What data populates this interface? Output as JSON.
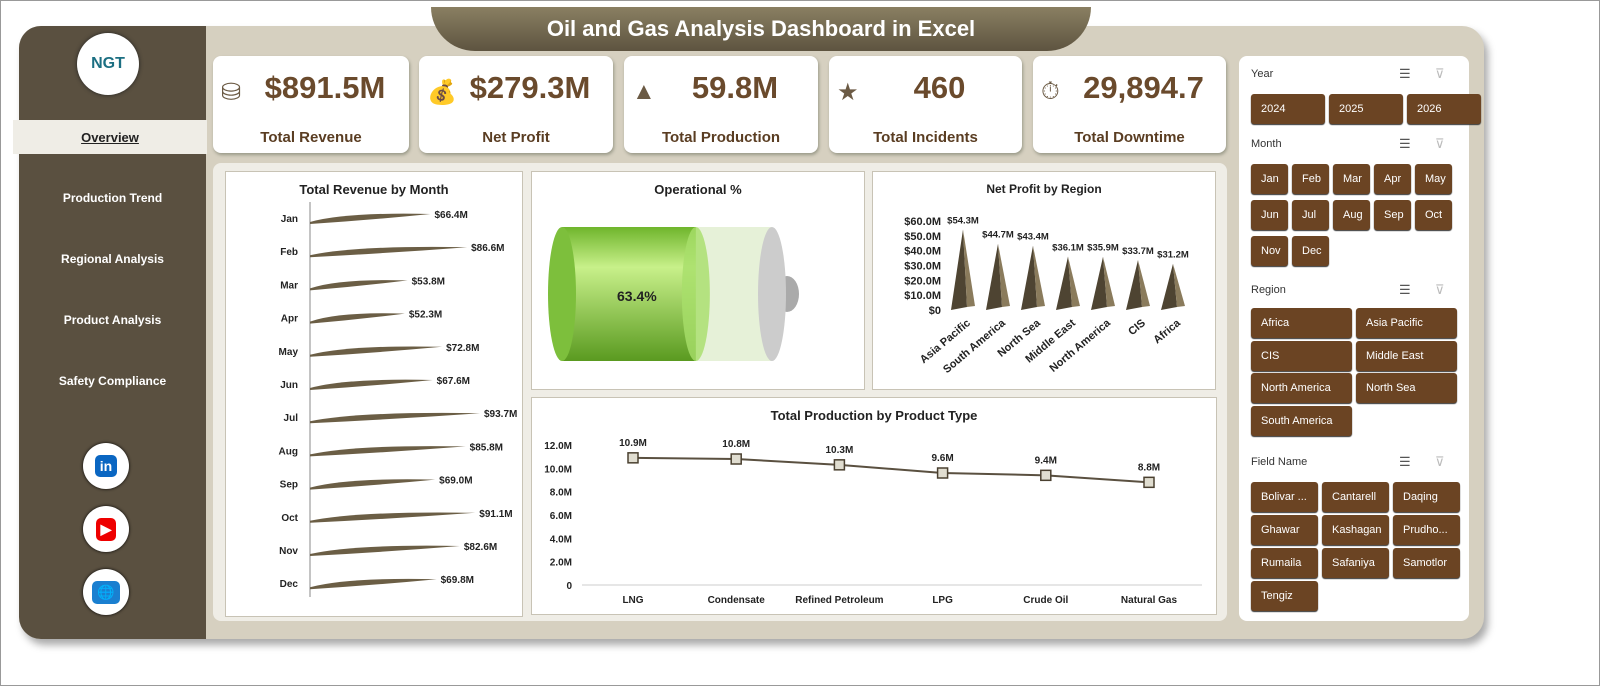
{
  "title": "Oil and Gas Analysis Dashboard in Excel",
  "logo": "NGT",
  "nav": [
    {
      "label": "Overview",
      "active": true
    },
    {
      "label": "Production Trend"
    },
    {
      "label": "Regional Analysis"
    },
    {
      "label": "Product Analysis"
    },
    {
      "label": "Safety Compliance"
    }
  ],
  "social": [
    "linkedin-icon",
    "youtube-icon",
    "globe-icon"
  ],
  "kpis": [
    {
      "value": "$891.5M",
      "label": "Total Revenue",
      "icon": "coins-icon"
    },
    {
      "value": "$279.3M",
      "label": "Net Profit",
      "icon": "money-bag-icon"
    },
    {
      "value": "59.8M",
      "label": "Total Production",
      "icon": "gold-bars-icon"
    },
    {
      "value": "460",
      "label": "Total Incidents",
      "icon": "star-icon"
    },
    {
      "value": "29,894.7",
      "label": "Total Downtime",
      "icon": "timer-icon"
    }
  ],
  "chart_data": [
    {
      "type": "bar",
      "title": "Total Revenue  by Month",
      "categories": [
        "Jan",
        "Feb",
        "Mar",
        "Apr",
        "May",
        "Jun",
        "Jul",
        "Aug",
        "Sep",
        "Oct",
        "Nov",
        "Dec"
      ],
      "values": [
        66.4,
        86.6,
        53.8,
        52.3,
        72.8,
        67.6,
        93.7,
        85.8,
        69.0,
        91.1,
        82.6,
        69.8
      ],
      "labels": [
        "$66.4M",
        "$86.6M",
        "$53.8M",
        "$52.3M",
        "$72.8M",
        "$67.6M",
        "$93.7M",
        "$85.8M",
        "$69.0M",
        "$91.1M",
        "$82.6M",
        "$69.8M"
      ],
      "orientation": "horizontal",
      "color": "#6b5e45"
    },
    {
      "type": "gauge",
      "title": "Operational %",
      "value": 63.4,
      "label": "63.4%",
      "color": "#8fd14f"
    },
    {
      "type": "bar",
      "title": "Net Profit by Region",
      "categories": [
        "Asia Pacific",
        "South America",
        "North Sea",
        "Middle East",
        "North America",
        "CIS",
        "Africa"
      ],
      "values": [
        54.3,
        44.7,
        43.4,
        36.1,
        35.9,
        33.7,
        31.2
      ],
      "labels": [
        "$54.3M",
        "$44.7M",
        "$43.4M",
        "$36.1M",
        "$35.9M",
        "$33.7M",
        "$31.2M"
      ],
      "yticks": [
        "$0",
        "$10.0M",
        "$20.0M",
        "$30.0M",
        "$40.0M",
        "$50.0M",
        "$60.0M"
      ],
      "ylim": [
        0,
        60
      ],
      "color": "#6b5e45"
    },
    {
      "type": "line",
      "title": "Total Production by Product Type",
      "categories": [
        "LNG",
        "Condensate",
        "Refined Petroleum",
        "LPG",
        "Crude Oil",
        "Natural Gas"
      ],
      "values": [
        10.9,
        10.8,
        10.3,
        9.6,
        9.4,
        8.8
      ],
      "labels": [
        "10.9M",
        "10.8M",
        "10.3M",
        "9.6M",
        "9.4M",
        "8.8M"
      ],
      "yticks": [
        "0",
        "2.0M",
        "4.0M",
        "6.0M",
        "8.0M",
        "10.0M",
        "12.0M"
      ],
      "ylim": [
        0,
        12
      ]
    }
  ],
  "slicers": [
    {
      "title": "Year",
      "items": [
        "2024",
        "2025",
        "2026"
      ]
    },
    {
      "title": "Month",
      "items": [
        "Jan",
        "Feb",
        "Mar",
        "Apr",
        "May",
        "Jun",
        "Jul",
        "Aug",
        "Sep",
        "Oct",
        "Nov",
        "Dec"
      ]
    },
    {
      "title": "Region",
      "items": [
        "Africa",
        "Asia Pacific",
        "CIS",
        "Middle East",
        "North America",
        "North Sea",
        "South America"
      ]
    },
    {
      "title": "Field Name",
      "items": [
        "Bolivar ...",
        "Cantarell",
        "Daqing",
        "Ghawar",
        "Kashagan",
        "Prudho...",
        "Rumaila",
        "Safaniya",
        "Samotlor",
        "Tengiz"
      ]
    }
  ]
}
